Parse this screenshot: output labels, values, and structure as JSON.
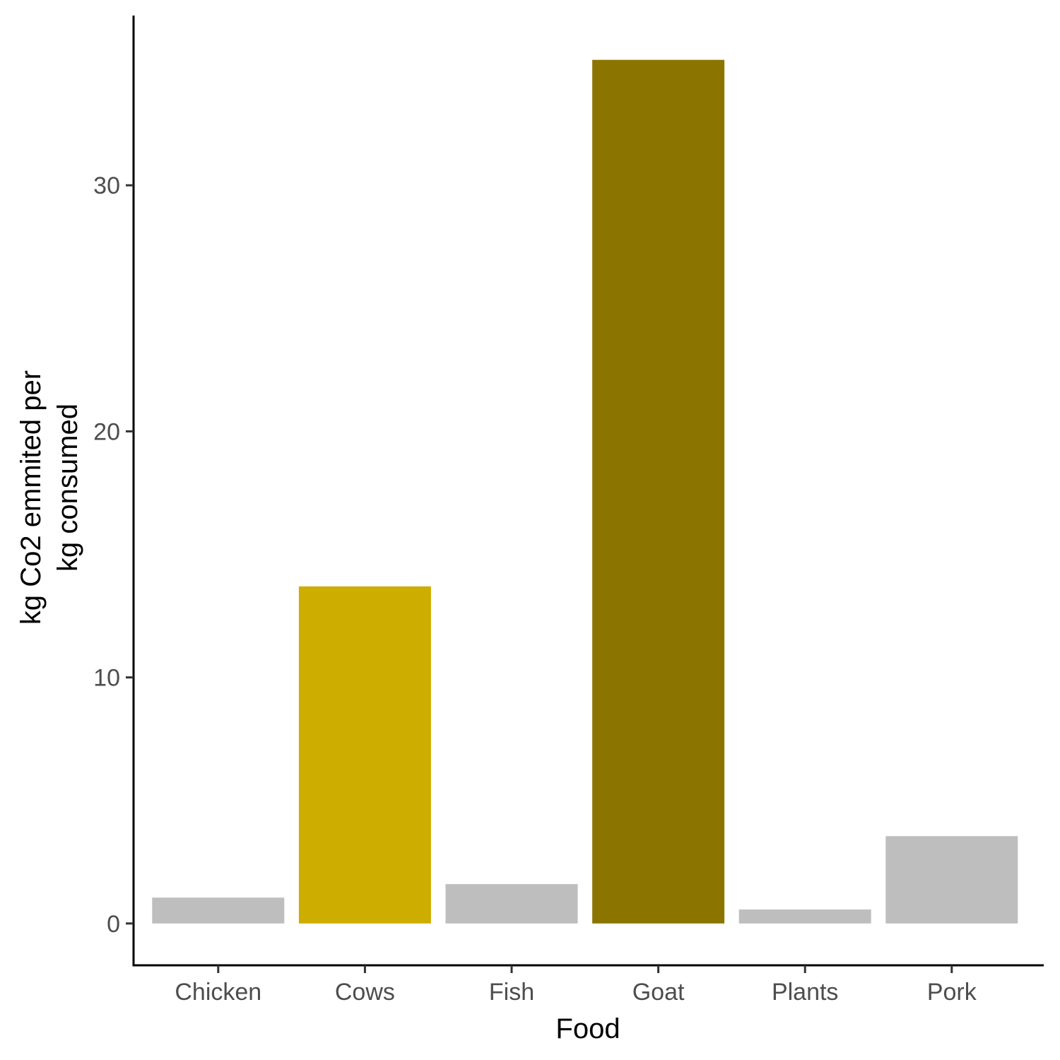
{
  "chart_data": {
    "type": "bar",
    "title": "",
    "xlabel": "Food",
    "ylabel_lines": [
      "kg Co2 emmited per",
      "kg consumed"
    ],
    "categories": [
      "Chicken",
      "Cows",
      "Fish",
      "Goat",
      "Plants",
      "Pork"
    ],
    "values": [
      1.05,
      13.7,
      1.6,
      35.1,
      0.57,
      3.55
    ],
    "colors": [
      "#bebebe",
      "#cdad00",
      "#bebebe",
      "#8b7500",
      "#bebebe",
      "#bebebe"
    ],
    "y_ticks": [
      0,
      10,
      20,
      30
    ],
    "y_tick_labels": [
      "0",
      "10",
      "20",
      "30"
    ],
    "ylim": [
      -1.7,
      36.9
    ],
    "grid": false,
    "legend": "none"
  }
}
